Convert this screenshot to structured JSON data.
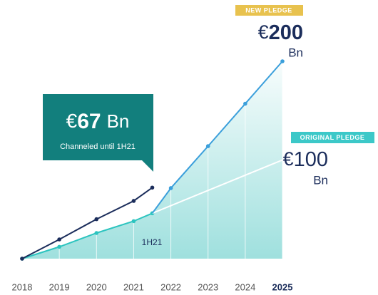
{
  "chart_data": {
    "type": "line",
    "xlim": [
      2018,
      2025
    ],
    "xticks": [
      2018,
      2019,
      2020,
      2021,
      2022,
      2023,
      2024,
      2025
    ],
    "ylim": [
      0,
      200
    ],
    "area_color": "#9fe0de",
    "series": [
      {
        "color": "#1b2d5b",
        "x": [
          2018,
          2019,
          2020,
          2021,
          2021.5
        ],
        "values": [
          0,
          19.5,
          40,
          58.5,
          72
        ]
      },
      {
        "color": "#2cc4bf",
        "x": [
          2018,
          2019,
          2020,
          2021,
          2021.5
        ],
        "values": [
          0,
          12,
          26,
          38,
          46
        ]
      },
      {
        "name": "NEW PLEDGE",
        "color": "#3b9fdb",
        "x": [
          2021.5,
          2022,
          2023,
          2024,
          2025
        ],
        "values": [
          46,
          71.5,
          114,
          157,
          200
        ]
      },
      {
        "name": "ORIGINAL PLEDGE",
        "color": "#ffffff",
        "x": [
          2021.5,
          2025
        ],
        "values": [
          46,
          100
        ]
      }
    ],
    "point_label": "1H21",
    "callout": {
      "currency": "€",
      "amount": 67,
      "unit": "Bn",
      "note": "Channeled until 1H21",
      "color": "#127f7d"
    },
    "pledges": [
      {
        "badge": "NEW PLEDGE",
        "badge_color": "#e8c24e",
        "currency": "€",
        "amount": 200,
        "unit": "Bn"
      },
      {
        "badge": "ORIGINAL PLEDGE",
        "badge_color": "#3cc8c8",
        "currency": "€",
        "amount": 100,
        "unit": "Bn"
      }
    ]
  }
}
